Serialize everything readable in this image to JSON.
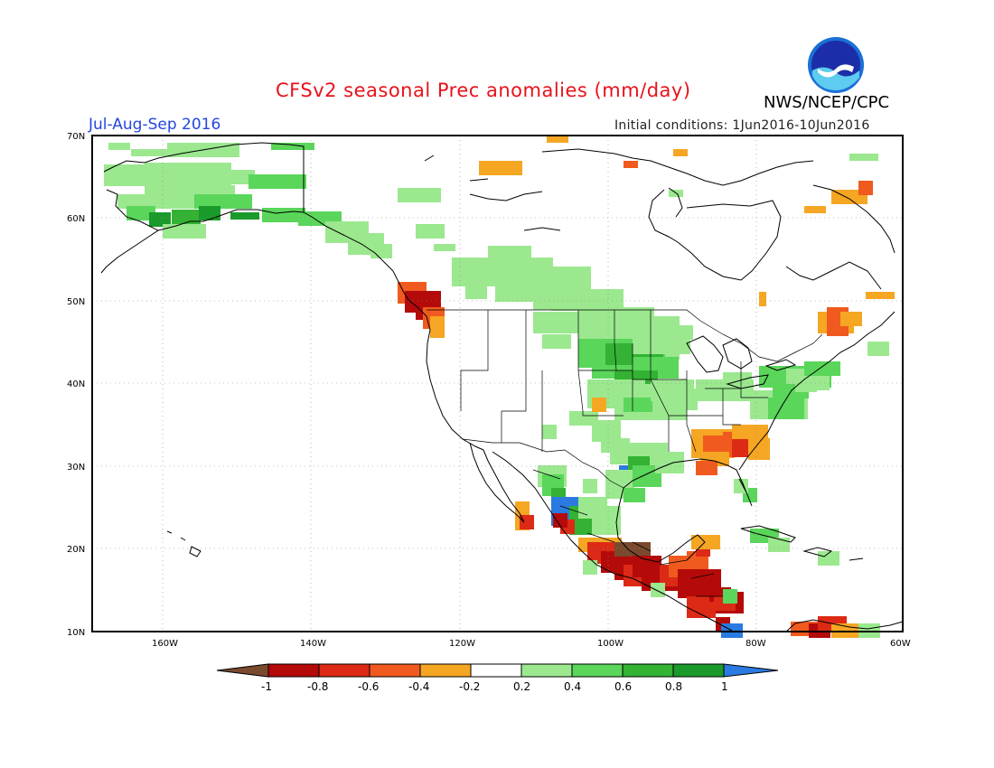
{
  "title": "CFSv2 seasonal Prec anomalies (mm/day)",
  "period": "Jul-Aug-Sep 2016",
  "initial_conditions": "Initial conditions: 1Jun2016-10Jun2016",
  "agency": "NWS/NCEP/CPC",
  "logo_text": "NOAA",
  "lat_labels": [
    "70N",
    "60N",
    "50N",
    "40N",
    "30N",
    "20N",
    "10N"
  ],
  "lon_labels": [
    "160W",
    "140W",
    "120W",
    "100W",
    "80W",
    "60W"
  ],
  "colorbar": {
    "tick_labels": [
      "-1",
      "-0.8",
      "-0.6",
      "-0.4",
      "-0.2",
      "0.2",
      "0.4",
      "0.6",
      "0.8",
      "1"
    ],
    "bins": [
      {
        "range": "< -1",
        "color": "#7a4a2e"
      },
      {
        "range": "-1 to -0.8",
        "color": "#b40a0a"
      },
      {
        "range": "-0.8 to -0.6",
        "color": "#dc2a16"
      },
      {
        "range": "-0.6 to -0.4",
        "color": "#f05a1e"
      },
      {
        "range": "-0.4 to -0.2",
        "color": "#f5a623"
      },
      {
        "range": "-0.2 to 0.2",
        "color": "#ffffff"
      },
      {
        "range": "0.2 to 0.4",
        "color": "#9be88f"
      },
      {
        "range": "0.4 to 0.6",
        "color": "#5ad65a"
      },
      {
        "range": "0.6 to 0.8",
        "color": "#33b233"
      },
      {
        "range": "0.8 to 1",
        "color": "#1a9a2a"
      },
      {
        "range": "> 1",
        "color": "#2a7ae0"
      }
    ]
  }
}
